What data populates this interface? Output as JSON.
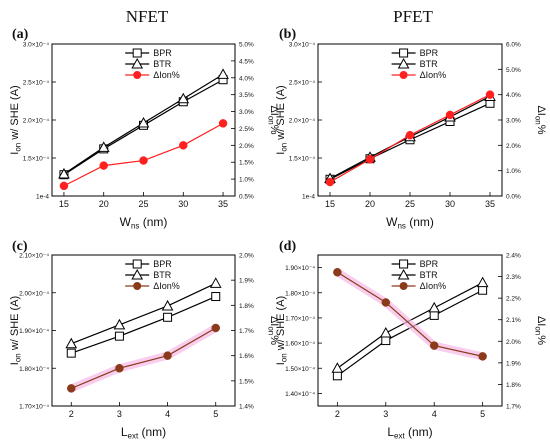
{
  "headers": {
    "left": "NFET",
    "right": "PFET"
  },
  "chart_data": [
    {
      "type": "line",
      "panel": "(a)",
      "x": [
        15,
        20,
        25,
        30,
        35
      ],
      "xlim": [
        13.5,
        36.5
      ],
      "xticks": [
        15,
        20,
        25,
        30,
        35
      ],
      "xlabel": {
        "main": "W",
        "sub": "ns",
        "rest": " (nm)"
      },
      "ylabel": {
        "main": "I",
        "sub": "on",
        "rest": " w/ SHE (A)"
      },
      "y2label": {
        "main": "ΔI",
        "sub": "on",
        "rest": "%"
      },
      "ylim": [
        0.0001,
        0.0003
      ],
      "yticks": [
        0.0001,
        0.00015,
        0.0002,
        0.00025,
        0.0003
      ],
      "ytick_labels": [
        "1e-4",
        "1.5×10⁻⁴",
        "2.0×10⁻⁴",
        "2.5×10⁻⁴",
        "3.0×10⁻⁴"
      ],
      "y2lim": [
        0.005,
        0.05
      ],
      "y2ticks": [
        0.005,
        0.01,
        0.015,
        0.02,
        0.025,
        0.03,
        0.035,
        0.04,
        0.045,
        0.05
      ],
      "y2tick_labels": [
        "0.5%",
        "1.0%",
        "1.5%",
        "2.0%",
        "2.5%",
        "3.0%",
        "3.5%",
        "4.0%",
        "4.5%",
        "5.0%"
      ],
      "series": [
        {
          "name": "BPR",
          "axis": "left",
          "marker": "square",
          "color": "#000000",
          "values": [
            0.000128,
            0.000162,
            0.000193,
            0.000224,
            0.000253
          ]
        },
        {
          "name": "BTR",
          "axis": "left",
          "marker": "triangle",
          "color": "#000000",
          "values": [
            0.000129,
            0.000164,
            0.000196,
            0.000228,
            0.00026
          ]
        },
        {
          "name": "ΔIon%",
          "axis": "right",
          "marker": "circle",
          "color": "#ff2020",
          "values": [
            0.008,
            0.014,
            0.0155,
            0.02,
            0.0265
          ]
        }
      ],
      "legend_position": "top-center"
    },
    {
      "type": "line",
      "panel": "(b)",
      "x": [
        15,
        20,
        25,
        30,
        35
      ],
      "xlim": [
        13.5,
        36.5
      ],
      "xticks": [
        15,
        20,
        25,
        30,
        35
      ],
      "xlabel": {
        "main": "W",
        "sub": "ns",
        "rest": " (nm)"
      },
      "ylabel": {
        "main": "I",
        "sub": "on",
        "rest": " w/ SHE (A)"
      },
      "y2label": {
        "main": "ΔI",
        "sub": "on",
        "rest": "%"
      },
      "ylim": [
        0.0001,
        0.0003
      ],
      "yticks": [
        0.0001,
        0.00015,
        0.0002,
        0.00025,
        0.0003
      ],
      "ytick_labels": [
        "1e-4",
        "1.5×10⁻⁴",
        "2.0×10⁻⁴",
        "2.5×10⁻⁴",
        "3.0×10⁻⁴"
      ],
      "y2lim": [
        0.0,
        0.06
      ],
      "y2ticks": [
        0.0,
        0.01,
        0.02,
        0.03,
        0.04,
        0.05,
        0.06
      ],
      "y2tick_labels": [
        "0.0%",
        "1.0%",
        "2.0%",
        "3.0%",
        "4.0%",
        "5.0%",
        "6.0%"
      ],
      "series": [
        {
          "name": "BPR",
          "axis": "left",
          "marker": "square",
          "color": "#000000",
          "values": [
            0.000122,
            0.000149,
            0.000174,
            0.000198,
            0.000222
          ]
        },
        {
          "name": "BTR",
          "axis": "left",
          "marker": "triangle",
          "color": "#000000",
          "values": [
            0.000123,
            0.000151,
            0.000178,
            0.000204,
            0.000231
          ]
        },
        {
          "name": "ΔIon%",
          "axis": "right",
          "marker": "circle",
          "color": "#ff2020",
          "values": [
            0.0055,
            0.0145,
            0.024,
            0.032,
            0.04
          ]
        }
      ],
      "legend_position": "top-center"
    },
    {
      "type": "line",
      "panel": "(c)",
      "x": [
        2,
        3,
        4,
        5
      ],
      "xlim": [
        1.6,
        5.4
      ],
      "xticks": [
        2,
        3,
        4,
        5
      ],
      "xlabel": {
        "main": "L",
        "sub": "ext",
        "rest": " (nm)"
      },
      "ylabel": {
        "main": "I",
        "sub": "on",
        "rest": " w/ SHE (A)"
      },
      "y2label": {
        "main": "ΔI",
        "sub": "on",
        "rest": "%"
      },
      "ylim": [
        0.00017,
        0.00021
      ],
      "yticks": [
        0.00017,
        0.00018,
        0.00019,
        0.0002,
        0.00021
      ],
      "ytick_labels": [
        "1.70×10⁻⁴",
        "1.80×10⁻⁴",
        "1.90×10⁻⁴",
        "2.00×10⁻⁴",
        "2.10×10⁻⁴"
      ],
      "y2lim": [
        0.014,
        0.02
      ],
      "y2ticks": [
        0.014,
        0.015,
        0.016,
        0.017,
        0.018,
        0.019,
        0.02
      ],
      "y2tick_labels": [
        "1.4%",
        "1.5%",
        "1.6%",
        "1.7%",
        "1.8%",
        "1.9%",
        "2.0%"
      ],
      "series": [
        {
          "name": "BPR",
          "axis": "left",
          "marker": "square",
          "color": "#000000",
          "values": [
            0.000184,
            0.0001885,
            0.0001935,
            0.000199
          ]
        },
        {
          "name": "BTR",
          "axis": "left",
          "marker": "triangle",
          "color": "#000000",
          "values": [
            0.0001865,
            0.0001915,
            0.0001965,
            0.0002025
          ]
        },
        {
          "name": "ΔIon%",
          "axis": "right",
          "marker": "circle",
          "color": "#8b3a1a",
          "values": [
            0.0147,
            0.0155,
            0.016,
            0.0171
          ]
        }
      ],
      "legend_position": "top-center"
    },
    {
      "type": "line",
      "panel": "(d)",
      "x": [
        2,
        3,
        4,
        5
      ],
      "xlim": [
        1.6,
        5.4
      ],
      "xticks": [
        2,
        3,
        4,
        5
      ],
      "xlabel": {
        "main": "L",
        "sub": "ext",
        "rest": " (nm)"
      },
      "ylabel": {
        "main": "I",
        "sub": "on",
        "rest": " w/ SHE (A)"
      },
      "y2label": {
        "main": "ΔI",
        "sub": "on",
        "rest": "%"
      },
      "ylim": [
        0.000135,
        0.000195
      ],
      "yticks": [
        0.00014,
        0.00015,
        0.00016,
        0.00017,
        0.00018,
        0.00019
      ],
      "ytick_labels": [
        "1.40×10⁻⁴",
        "1.50×10⁻⁴",
        "1.60×10⁻⁴",
        "1.70×10⁻⁴",
        "1.80×10⁻⁴",
        "1.90×10⁻⁴"
      ],
      "y2lim": [
        0.017,
        0.024
      ],
      "y2ticks": [
        0.017,
        0.018,
        0.019,
        0.02,
        0.021,
        0.022,
        0.023,
        0.024
      ],
      "y2tick_labels": [
        "1.7%",
        "1.8%",
        "1.9%",
        "2.0%",
        "2.1%",
        "2.2%",
        "2.3%",
        "2.4%"
      ],
      "series": [
        {
          "name": "BPR",
          "axis": "left",
          "marker": "square",
          "color": "#000000",
          "values": [
            0.000147,
            0.000161,
            0.000171,
            0.000181
          ]
        },
        {
          "name": "BTR",
          "axis": "left",
          "marker": "triangle",
          "color": "#000000",
          "values": [
            0.00015,
            0.000164,
            0.000174,
            0.000184
          ]
        },
        {
          "name": "ΔIon%",
          "axis": "right",
          "marker": "circle",
          "color": "#8b3a1a",
          "values": [
            0.0232,
            0.0218,
            0.0198,
            0.0193
          ]
        }
      ],
      "legend_position": "top-center"
    }
  ]
}
